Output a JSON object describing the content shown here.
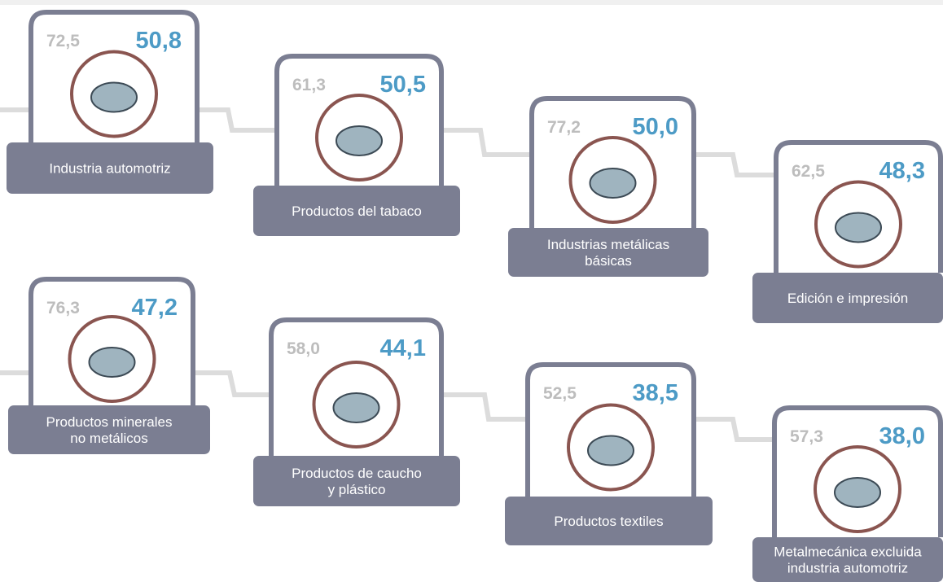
{
  "cards": [
    {
      "before": "72,5",
      "after": "50,8",
      "label": [
        "Industria automotriz"
      ]
    },
    {
      "before": "61,3",
      "after": "50,5",
      "label": [
        "Productos del tabaco"
      ]
    },
    {
      "before": "77,2",
      "after": "50,0",
      "label": [
        "Industrias metálicas",
        "básicas"
      ]
    },
    {
      "before": "62,5",
      "after": "48,3",
      "label": [
        "Edición e impresión"
      ]
    },
    {
      "before": "76,3",
      "after": "47,2",
      "label": [
        "Productos minerales",
        "no metálicos"
      ]
    },
    {
      "before": "58,0",
      "after": "44,1",
      "label": [
        "Productos de caucho",
        "y plástico"
      ]
    },
    {
      "before": "52,5",
      "after": "38,5",
      "label": [
        "Productos textiles"
      ]
    },
    {
      "before": "57,3",
      "after": "38,0",
      "label": [
        "Metalmecánica excluida",
        "industria automotriz"
      ]
    }
  ]
}
